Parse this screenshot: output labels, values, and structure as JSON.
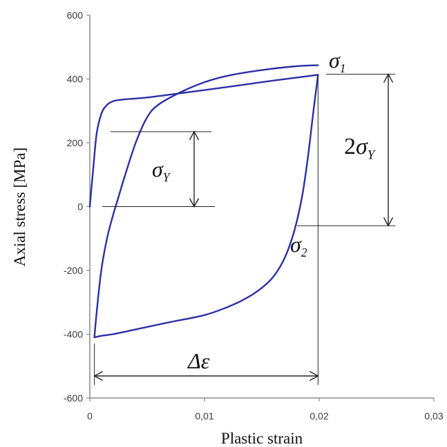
{
  "chart_data": {
    "type": "line",
    "title": "",
    "xlabel": "Plastic strain",
    "ylabel": "Axial stress [MPa]",
    "xlim": [
      0,
      0.03
    ],
    "ylim": [
      -600,
      600
    ],
    "x_ticks": [
      0,
      0.01,
      0.02,
      0.03
    ],
    "x_tick_labels": [
      "0",
      "0,01",
      "0,02",
      "0,03"
    ],
    "y_ticks": [
      600,
      400,
      200,
      0,
      -200,
      -400,
      -600
    ],
    "y_tick_labels": [
      "600",
      "400",
      "200",
      "0",
      "-200",
      "-400",
      "-600"
    ],
    "grid": false,
    "legend": "none",
    "line_color": "#2b2fa8",
    "annotation_color": "#222222",
    "series": [
      {
        "x": [
          0,
          0.0003,
          0.0006,
          0.001,
          0.0014,
          0.002,
          0.003,
          0.005,
          0.008,
          0.012,
          0.016,
          0.0199
        ],
        "y": [
          0,
          120,
          230,
          290,
          315,
          330,
          336,
          342,
          356,
          375,
          395,
          413
        ]
      },
      {
        "x": [
          0.0199,
          0.0195,
          0.019,
          0.0185,
          0.0178,
          0.017,
          0.016,
          0.0148,
          0.0135,
          0.012,
          0.01,
          0.007,
          0.004,
          0.002,
          0.001,
          0.0004
        ],
        "y": [
          413,
          300,
          150,
          30,
          -80,
          -160,
          -220,
          -260,
          -290,
          -315,
          -340,
          -362,
          -385,
          -400,
          -405,
          -410
        ]
      },
      {
        "x": [
          0.0004,
          0.0006,
          0.001,
          0.0015,
          0.002,
          0.0025,
          0.003,
          0.004,
          0.005,
          0.006,
          0.008,
          0.01,
          0.012,
          0.015,
          0.018,
          0.0199
        ],
        "y": [
          -410,
          -330,
          -200,
          -100,
          -30,
          30,
          90,
          200,
          280,
          320,
          360,
          390,
          410,
          428,
          440,
          443
        ]
      }
    ],
    "annotations": {
      "sigma1": {
        "base": "σ",
        "sub": "1"
      },
      "sigma2": {
        "base": "σ",
        "sub": "2"
      },
      "sigmaY": {
        "base": "σ",
        "sub": "Y"
      },
      "two_sigmaY": {
        "coef": "2",
        "base": "σ",
        "sub": "Y"
      },
      "delta_eps": {
        "text": "Δε"
      }
    },
    "markers": {
      "sigma1_level": 415,
      "sigma2_level": -60,
      "sigmaY_top": 235,
      "sigmaY_bottom": 0,
      "strain_range": [
        0.0004,
        0.0199
      ]
    }
  }
}
